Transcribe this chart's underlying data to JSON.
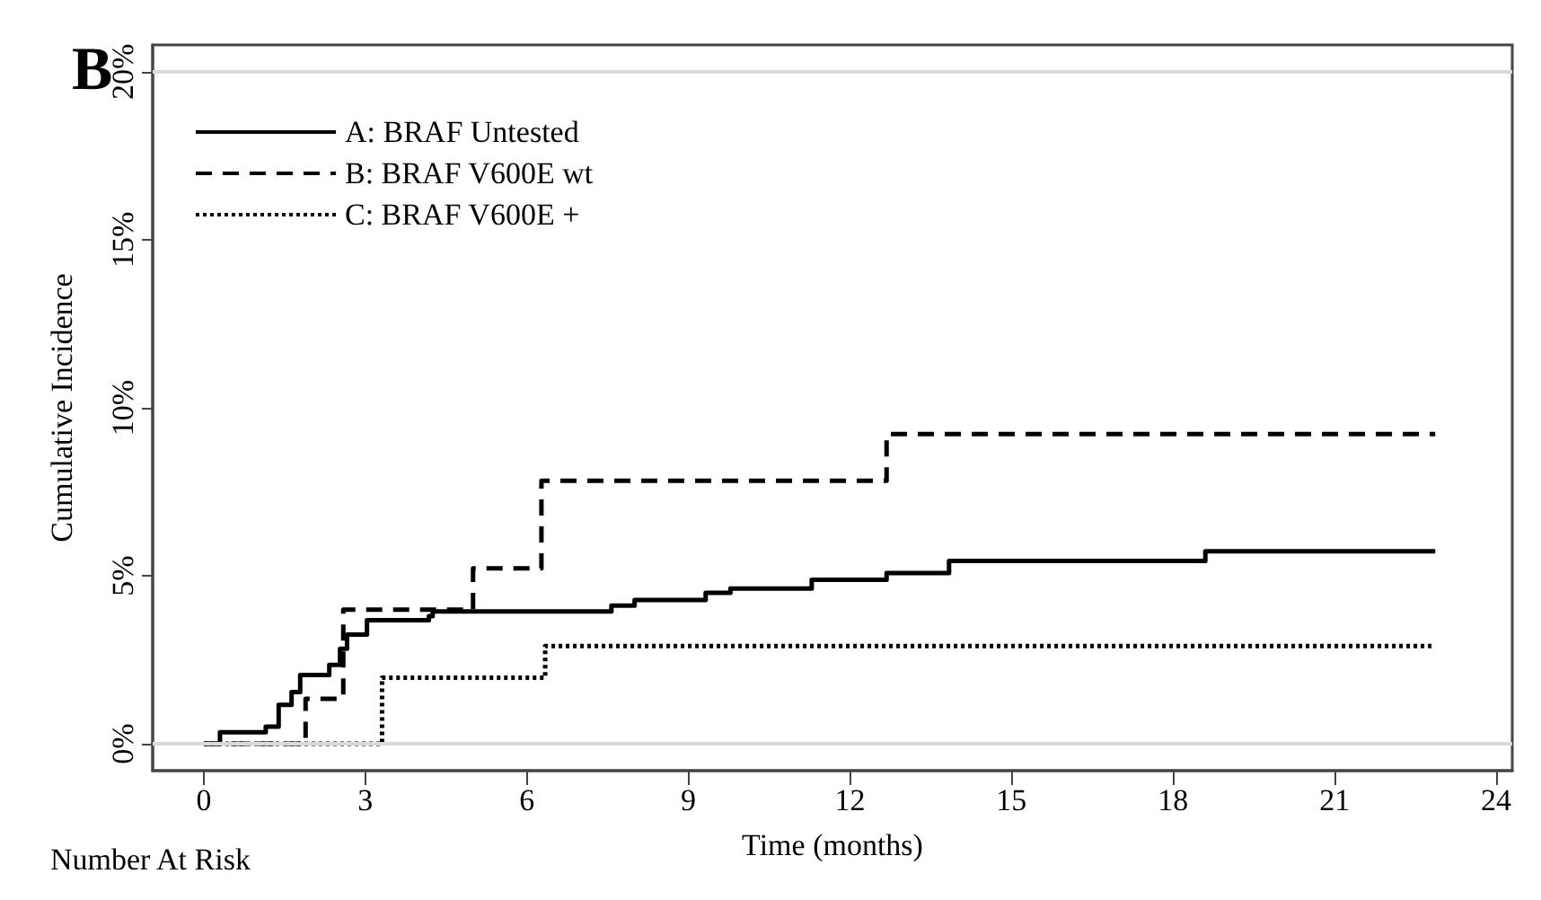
{
  "chart_data": {
    "type": "step",
    "xlabel": "Time (months)",
    "ylabel": "Cumulative Incidence",
    "xlim": [
      -0.95,
      24.3
    ],
    "xticks": [
      0,
      3,
      6,
      9,
      12,
      15,
      18,
      21,
      24
    ],
    "ylim": [
      -0.8,
      20.8
    ],
    "yticks": [
      {
        "value": 0,
        "label": "0%"
      },
      {
        "value": 5,
        "label": "5%"
      },
      {
        "value": 10,
        "label": "10%"
      },
      {
        "value": 15,
        "label": "15%"
      },
      {
        "value": 20,
        "label": "20%"
      }
    ],
    "grid": false,
    "legend": "top left",
    "marker": "none",
    "ref_lines": [
      {
        "axis": "y",
        "value": 0,
        "color": "#d9d9d9"
      },
      {
        "axis": "y",
        "value": 20,
        "color": "#d9d9d9"
      }
    ],
    "annotations": [
      "B",
      "Number At Risk"
    ],
    "series": [
      {
        "name": "A: BRAF Untested",
        "color": "#000000",
        "line_style": "solid",
        "x": [
          0,
          0.3,
          1.15,
          1.39,
          1.63,
          1.79,
          2.33,
          2.53,
          2.66,
          3.03,
          4.18,
          4.25,
          7.57,
          8.0,
          9.32,
          9.78,
          11.29,
          12.68,
          13.84,
          18.6,
          22.87
        ],
        "values": [
          0,
          0.34,
          0.51,
          1.16,
          1.54,
          2.05,
          2.35,
          2.83,
          3.25,
          3.68,
          3.8,
          3.94,
          4.11,
          4.28,
          4.49,
          4.62,
          4.88,
          5.08,
          5.44,
          5.73,
          5.73
        ]
      },
      {
        "name": "B: BRAF V600E wt",
        "color": "#000000",
        "line_style": "dashed",
        "x": [
          0,
          1.89,
          2.59,
          5.0,
          6.27,
          12.68,
          22.87
        ],
        "values": [
          0,
          1.34,
          3.99,
          5.22,
          7.83,
          9.22,
          9.22
        ]
      },
      {
        "name": "C: BRAF V600E +",
        "color": "#000000",
        "line_style": "dotted",
        "x": [
          0,
          3.31,
          6.34,
          22.8
        ],
        "values": [
          0,
          1.97,
          2.91,
          2.91
        ]
      }
    ]
  }
}
